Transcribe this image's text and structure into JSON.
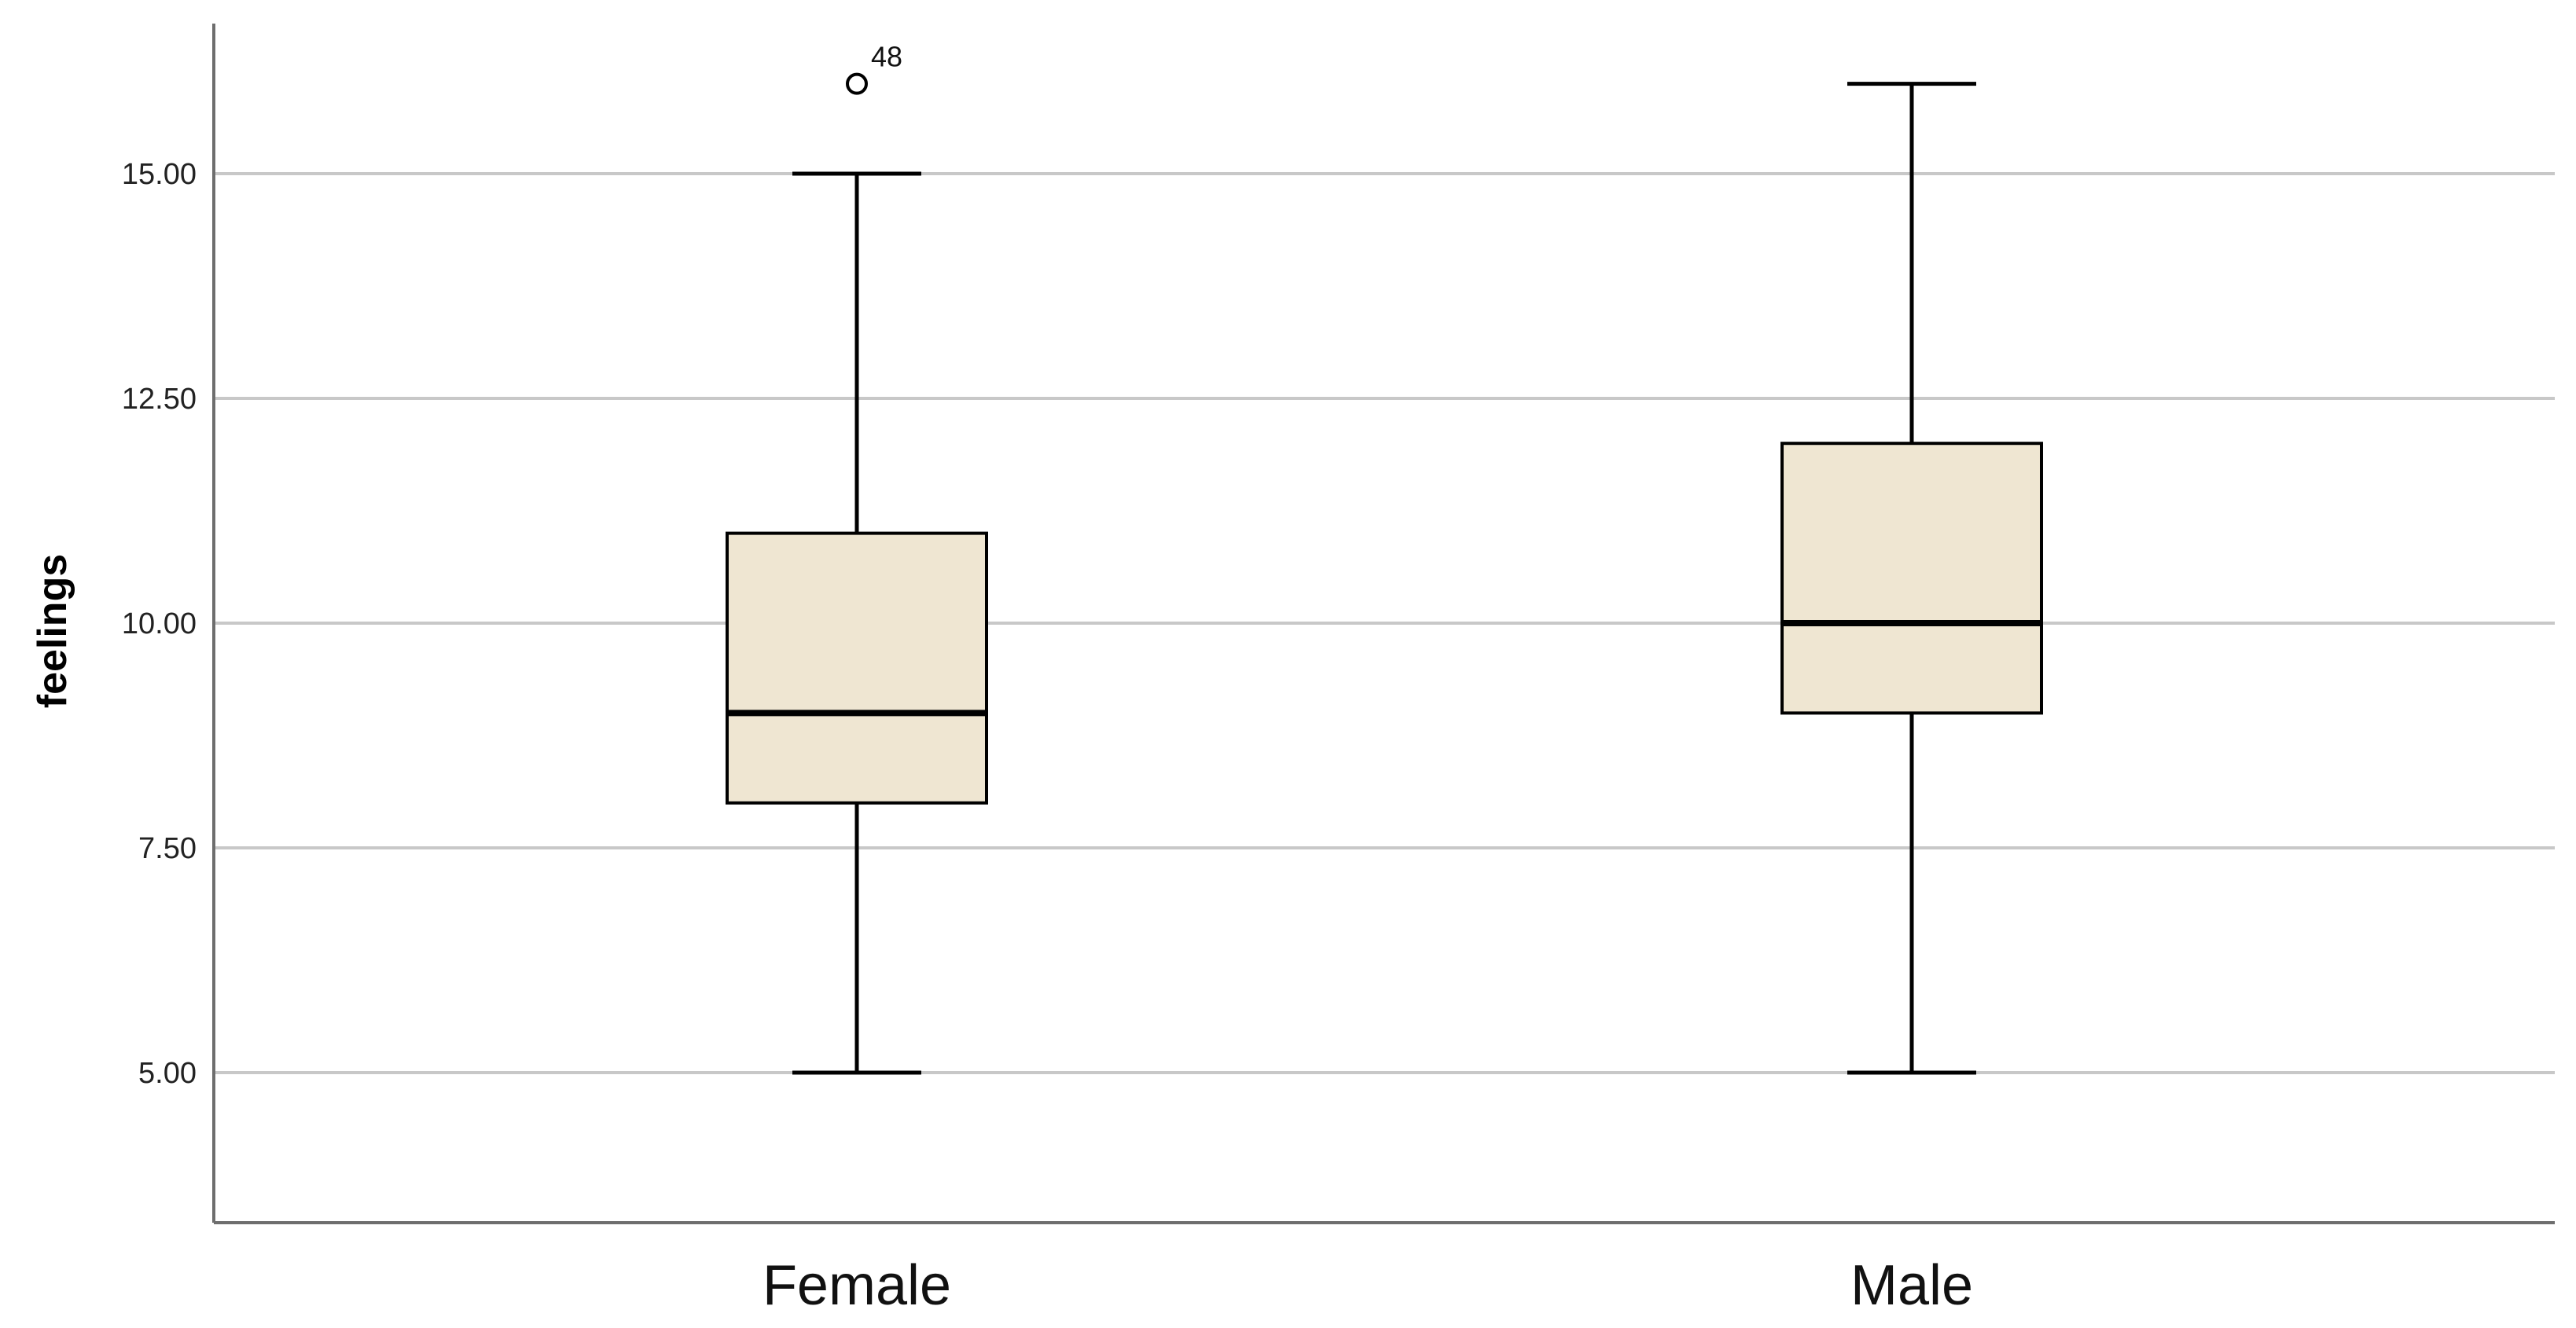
{
  "chart_data": {
    "type": "boxplot",
    "ylabel": "feelings",
    "xlabel": "",
    "ylim": [
      3.33,
      16.67
    ],
    "yticks": [
      5,
      7.5,
      10,
      12.5,
      15
    ],
    "ytick_labels": [
      "5.00",
      "7.50",
      "10.00",
      "12.50",
      "15.00"
    ],
    "grid": "horizontal",
    "box_color": "#efe6d2",
    "categories": [
      "Female",
      "Male"
    ],
    "boxes": [
      {
        "category": "Female",
        "whisker_low": 5,
        "q1": 8,
        "median": 9,
        "q3": 11,
        "whisker_high": 15,
        "outliers": [
          {
            "value": 16,
            "label": "48"
          }
        ]
      },
      {
        "category": "Male",
        "whisker_low": 5,
        "q1": 9,
        "median": 10,
        "q3": 12,
        "whisker_high": 16,
        "outliers": []
      }
    ]
  }
}
